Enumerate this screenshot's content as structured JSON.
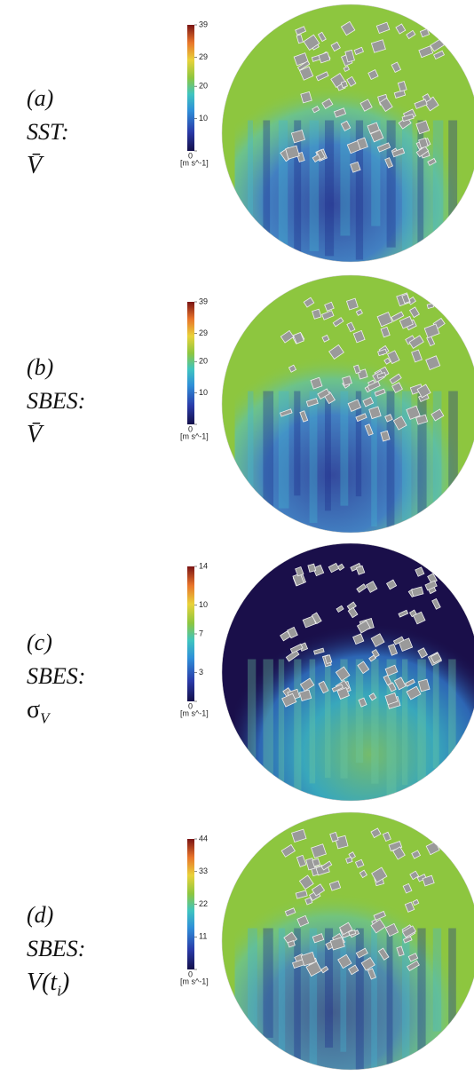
{
  "panels": [
    {
      "label": "(a)",
      "method": "SST:",
      "quantity": {
        "main": "V̄"
      },
      "colorbar": {
        "ticks": [
          0,
          10,
          20,
          29,
          39
        ],
        "unit": "[m s^-1]"
      }
    },
    {
      "label": "(b)",
      "method": "SBES:",
      "quantity": {
        "main": "V̄"
      },
      "colorbar": {
        "ticks": [
          0,
          10,
          20,
          29,
          39
        ],
        "unit": "[m s^-1]"
      }
    },
    {
      "label": "(c)",
      "method": "SBES:",
      "quantity": {
        "main": "σ",
        "sub": "V"
      },
      "colorbar": {
        "ticks": [
          0,
          3,
          7,
          10,
          14
        ],
        "unit": "[m s^-1]"
      }
    },
    {
      "label": "(d)",
      "method": "SBES:",
      "quantity": {
        "main": "V(t",
        "sub": "i",
        "tail": ")"
      },
      "colorbar": {
        "ticks": [
          0,
          11,
          22,
          33,
          44
        ],
        "unit": "[m s^-1]"
      }
    }
  ]
}
